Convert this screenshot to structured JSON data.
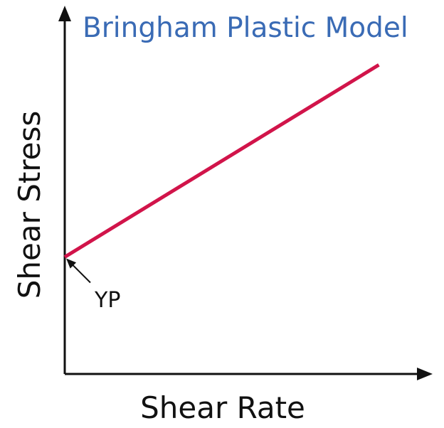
{
  "chart_data": {
    "type": "line",
    "title": "Bringham Plastic Model",
    "xlabel": "Shear Rate",
    "ylabel": "Shear Stress",
    "grid": false,
    "legend": "none",
    "xlim": [
      0,
      1
    ],
    "ylim": [
      0,
      1
    ],
    "series": [
      {
        "x": [
          0,
          0.89
        ],
        "y": [
          0.333,
          0.88
        ]
      }
    ],
    "annotations": [
      {
        "text": "YP",
        "x": 0,
        "y": 0.333
      }
    ],
    "colors": {
      "title": "#3a6bb5",
      "line": "#d1144a",
      "axis": "#111111"
    }
  }
}
